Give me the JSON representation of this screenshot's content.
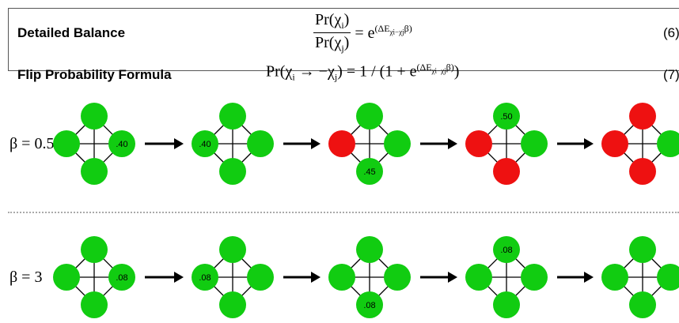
{
  "formulas": [
    {
      "label": "Detailed Balance",
      "num_text": "Pr(χ",
      "num_sub": "i",
      "den_text": "Pr(χ",
      "den_sub": "j",
      "close": ")",
      "rhs": "= e",
      "exp_pre": "(ΔE",
      "exp_sub": "χi−χj",
      "exp_post": "β)",
      "number": "(6)"
    },
    {
      "label": "Flip Probability Formula",
      "lhs_pre": "Pr(χ",
      "lhs_sub1": "i",
      "lhs_mid": " → −χ",
      "lhs_sub2": "j",
      "lhs_post": ") = 1 / (1 + e",
      "exp_pre": "(ΔE",
      "exp_sub": "χi−χj",
      "exp_post": "β)",
      "tail": ")",
      "number": "(7)"
    }
  ],
  "rows": [
    {
      "beta_label": "β = 0.5",
      "diagrams": [
        {
          "top": "green",
          "left": "green",
          "right": "green",
          "bottom": "green",
          "label_node": "right",
          "label": ".40"
        },
        {
          "top": "green",
          "left": "green",
          "right": "green",
          "bottom": "green",
          "label_node": "left",
          "label": ".40"
        },
        {
          "top": "green",
          "left": "red",
          "right": "green",
          "bottom": "green",
          "label_node": "bottom",
          "label": ".45"
        },
        {
          "top": "green",
          "left": "red",
          "right": "green",
          "bottom": "red",
          "label_node": "top",
          "label": ".50"
        },
        {
          "top": "red",
          "left": "red",
          "right": "green",
          "bottom": "red",
          "label_node": "",
          "label": ""
        }
      ]
    },
    {
      "beta_label": "β = 3",
      "diagrams": [
        {
          "top": "green",
          "left": "green",
          "right": "green",
          "bottom": "green",
          "label_node": "right",
          "label": ".08"
        },
        {
          "top": "green",
          "left": "green",
          "right": "green",
          "bottom": "green",
          "label_node": "left",
          "label": ".08"
        },
        {
          "top": "green",
          "left": "green",
          "right": "green",
          "bottom": "green",
          "label_node": "bottom",
          "label": ".08"
        },
        {
          "top": "green",
          "left": "green",
          "right": "green",
          "bottom": "green",
          "label_node": "top",
          "label": ".08"
        },
        {
          "top": "green",
          "left": "green",
          "right": "green",
          "bottom": "green",
          "label_node": "",
          "label": ""
        }
      ]
    }
  ],
  "colors": {
    "green": "#11cc11",
    "red": "#ee1111",
    "edge": "#000000"
  }
}
